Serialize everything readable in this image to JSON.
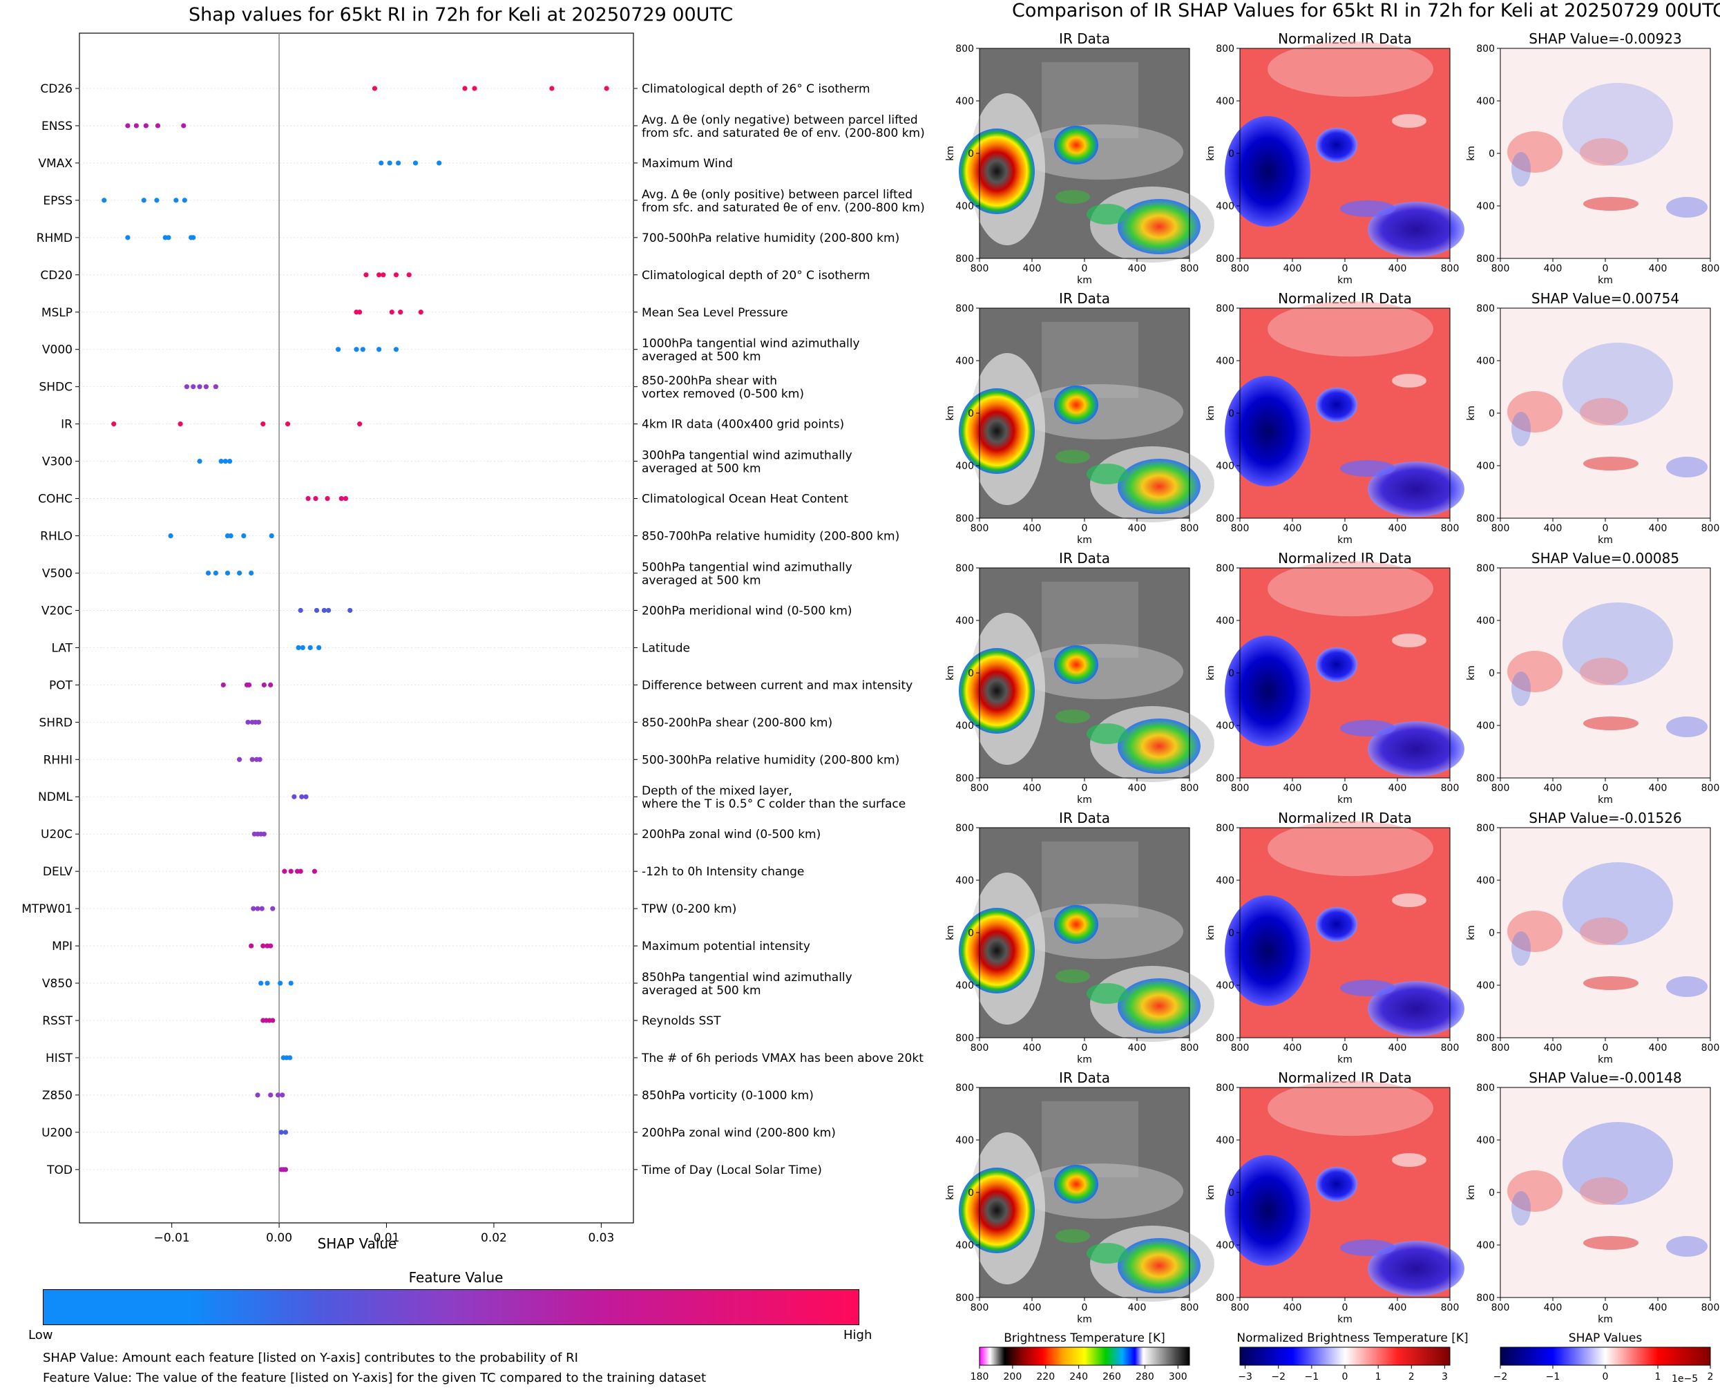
{
  "left_title": "Shap values for 65kt RI in 72h for Keli at 20250729 00UTC",
  "right_title": "Comparison of IR SHAP Values for 65kt RI in 72h for Keli at 20250729 00UTC",
  "chart_data": [
    {
      "type": "scatter",
      "title": "Shap values for 65kt RI in 72h for Keli at 20250729 00UTC",
      "xlabel": "SHAP Value",
      "ylabel": "",
      "xlim": [
        -0.0186,
        0.033
      ],
      "xticks": [
        "−0.01",
        "0.00",
        "0.01",
        "0.02",
        "0.03"
      ],
      "xtick_values": [
        -0.01,
        0.0,
        0.01,
        0.02,
        0.03
      ],
      "colorbar": {
        "label": "Feature Value",
        "low": "Low",
        "high": "High",
        "colors": [
          "#0f8bfa",
          "#8d3ec6",
          "#ff0a5a"
        ]
      },
      "features": [
        {
          "name": "CD26",
          "desc": [
            "Climatological depth of 26° C isotherm"
          ],
          "values": [
            0.0089,
            0.0173,
            0.0182,
            0.0254,
            0.0305
          ],
          "color": "#f3095e"
        },
        {
          "name": "ENSS",
          "desc": [
            "Avg. Δ θe (only negative) between parcel lifted",
            "from sfc. and saturated θe of env. (200-800 km)"
          ],
          "values": [
            -0.0141,
            -0.0133,
            -0.0124,
            -0.0113,
            -0.0089
          ],
          "color": "#b21aac"
        },
        {
          "name": "VMAX",
          "desc": [
            "Maximum Wind"
          ],
          "values": [
            0.0095,
            0.0103,
            0.0111,
            0.0127,
            0.0149
          ],
          "color": "#1188f0"
        },
        {
          "name": "EPSS",
          "desc": [
            "Avg. Δ θe (only positive) between parcel lifted",
            "from sfc. and saturated θe of env. (200-800 km)"
          ],
          "values": [
            -0.0163,
            -0.0126,
            -0.0114,
            -0.0096,
            -0.0088
          ],
          "color": "#1188f0"
        },
        {
          "name": "RHMD",
          "desc": [
            "700-500hPa relative humidity (200-800 km)"
          ],
          "values": [
            -0.0141,
            -0.0106,
            -0.0103,
            -0.0082,
            -0.008
          ],
          "color": "#1188f0"
        },
        {
          "name": "CD20",
          "desc": [
            "Climatological depth of 20° C isotherm"
          ],
          "values": [
            0.0081,
            0.0093,
            0.0097,
            0.0109,
            0.0121
          ],
          "color": "#ee0a62"
        },
        {
          "name": "MSLP",
          "desc": [
            "Mean Sea Level Pressure"
          ],
          "values": [
            0.0072,
            0.0075,
            0.0105,
            0.0113,
            0.0132
          ],
          "color": "#ee0a62"
        },
        {
          "name": "V000",
          "desc": [
            "1000hPa tangential wind azimuthally",
            "averaged at 500 km"
          ],
          "values": [
            0.0055,
            0.0072,
            0.0078,
            0.0093,
            0.0109
          ],
          "color": "#1188f0"
        },
        {
          "name": "SHDC",
          "desc": [
            "850-200hPa shear with",
            "vortex removed (0-500 km)"
          ],
          "values": [
            -0.0086,
            -0.008,
            -0.0074,
            -0.0068,
            -0.0059
          ],
          "color": "#8b3ec8"
        },
        {
          "name": "IR",
          "desc": [
            "4km IR data (400x400 grid points)"
          ],
          "values": [
            -0.0154,
            -0.0092,
            -0.0015,
            0.0008,
            0.0075
          ],
          "color": "#ee0a62"
        },
        {
          "name": "V300",
          "desc": [
            "300hPa tangential wind azimuthally",
            "averaged at 500 km"
          ],
          "values": [
            -0.0074,
            -0.0054,
            -0.005,
            -0.0046
          ],
          "color": "#1188f0"
        },
        {
          "name": "COHC",
          "desc": [
            "Climatological Ocean Heat Content"
          ],
          "values": [
            0.0027,
            0.0034,
            0.0045,
            0.0058,
            0.0062
          ],
          "color": "#e50c70"
        },
        {
          "name": "RHLO",
          "desc": [
            "850-700hPa relative humidity (200-800 km)"
          ],
          "values": [
            -0.0101,
            -0.0048,
            -0.0045,
            -0.0033,
            -0.0007
          ],
          "color": "#1188f0"
        },
        {
          "name": "V500",
          "desc": [
            "500hPa tangential wind azimuthally",
            "averaged at 500 km"
          ],
          "values": [
            -0.0066,
            -0.0059,
            -0.0048,
            -0.0037,
            -0.0026
          ],
          "color": "#1188f0"
        },
        {
          "name": "V20C",
          "desc": [
            "200hPa meridional wind (0-500 km)"
          ],
          "values": [
            0.002,
            0.0035,
            0.0042,
            0.0046,
            0.0066
          ],
          "color": "#4d5ae0"
        },
        {
          "name": "LAT",
          "desc": [
            "Latitude"
          ],
          "values": [
            0.0018,
            0.0022,
            0.0029,
            0.0037
          ],
          "color": "#1188f0"
        },
        {
          "name": "POT",
          "desc": [
            "Difference between current and max intensity"
          ],
          "values": [
            -0.0052,
            -0.003,
            -0.0028,
            -0.0014,
            -0.0008
          ],
          "color": "#b21aac"
        },
        {
          "name": "SHRD",
          "desc": [
            "850-200hPa shear (200-800 km)"
          ],
          "values": [
            -0.0029,
            -0.0025,
            -0.0022,
            -0.0019
          ],
          "color": "#8b3ec8"
        },
        {
          "name": "RHHI",
          "desc": [
            "500-300hPa relative humidity (200-800 km)"
          ],
          "values": [
            -0.0037,
            -0.0025,
            -0.0021,
            -0.0018
          ],
          "color": "#8b3ec8"
        },
        {
          "name": "NDML",
          "desc": [
            "Depth of the mixed layer,",
            "where the T is 0.5° C colder than the surface"
          ],
          "values": [
            0.0014,
            0.0021,
            0.0025
          ],
          "color": "#6a4ad6"
        },
        {
          "name": "U20C",
          "desc": [
            "200hPa zonal wind (0-500 km)"
          ],
          "values": [
            -0.0023,
            -0.002,
            -0.0017,
            -0.0014
          ],
          "color": "#8b3ec8"
        },
        {
          "name": "DELV",
          "desc": [
            "-12h to 0h Intensity change"
          ],
          "values": [
            0.0005,
            0.0011,
            0.0017,
            0.002,
            0.0033
          ],
          "color": "#c21199"
        },
        {
          "name": "MTPW01",
          "desc": [
            "TPW (0-200 km)"
          ],
          "values": [
            -0.0024,
            -0.002,
            -0.0016,
            -0.0006
          ],
          "color": "#8b3ec8"
        },
        {
          "name": "MPI",
          "desc": [
            "Maximum potential intensity"
          ],
          "values": [
            -0.0026,
            -0.0015,
            -0.0011,
            -0.0008
          ],
          "color": "#c21199"
        },
        {
          "name": "V850",
          "desc": [
            "850hPa tangential wind azimuthally",
            "averaged at 500 km"
          ],
          "values": [
            -0.0017,
            -0.0011,
            0.0001,
            0.0011
          ],
          "color": "#1188f0"
        },
        {
          "name": "RSST",
          "desc": [
            "Reynolds SST"
          ],
          "values": [
            -0.0015,
            -0.0012,
            -0.0009,
            -0.0006
          ],
          "color": "#c21199"
        },
        {
          "name": "HIST",
          "desc": [
            "The # of 6h periods VMAX has been above 20kt"
          ],
          "values": [
            0.0004,
            0.0007,
            0.001
          ],
          "color": "#1188f0"
        },
        {
          "name": "Z850",
          "desc": [
            "850hPa vorticity (0-1000 km)"
          ],
          "values": [
            -0.002,
            -0.0008,
            -0.0001,
            0.0003
          ],
          "color": "#8b3ec8"
        },
        {
          "name": "U200",
          "desc": [
            "200hPa zonal wind (200-800 km)"
          ],
          "values": [
            0.0002,
            0.0006
          ],
          "color": "#4d5ae0"
        },
        {
          "name": "TOD",
          "desc": [
            "Time of Day (Local Solar Time)"
          ],
          "values": [
            0.0002,
            0.0004,
            0.0006
          ],
          "color": "#b21aac"
        }
      ]
    },
    {
      "type": "heatmap",
      "title": "Comparison of IR SHAP Values for 65kt RI in 72h for Keli at 20250729 00UTC",
      "columns": [
        "IR Data",
        "Normalized IR Data"
      ],
      "shap_titles": [
        "SHAP Value=-0.00923",
        "SHAP Value=0.00754",
        "SHAP Value=0.00085",
        "SHAP Value=-0.01526",
        "SHAP Value=-0.00148"
      ],
      "axis_label": "km",
      "ticks": [
        "800",
        "400",
        "0",
        "400",
        "800"
      ],
      "colorbars": [
        {
          "label": "Brightness Temperature [K]",
          "ticks": [
            "180",
            "200",
            "220",
            "240",
            "260",
            "280",
            "300"
          ]
        },
        {
          "label": "Normalized Brightness Temperature [K]",
          "ticks": [
            "−3",
            "−2",
            "−1",
            "0",
            "1",
            "2",
            "3"
          ]
        },
        {
          "label": "SHAP Values",
          "ticks": [
            "−2",
            "−1",
            "0",
            "1",
            "2"
          ],
          "offset": "1e−5"
        }
      ]
    }
  ],
  "notes": {
    "shap": "SHAP Value: Amount each feature [listed on Y-axis] contributes to the probability of RI",
    "feature": "Feature Value: The value of the feature [listed on Y-axis] for the given TC compared to the training dataset"
  },
  "colors": {
    "low": "#0f8bfa",
    "mid": "#8d3ec6",
    "high": "#ff0a5a"
  }
}
